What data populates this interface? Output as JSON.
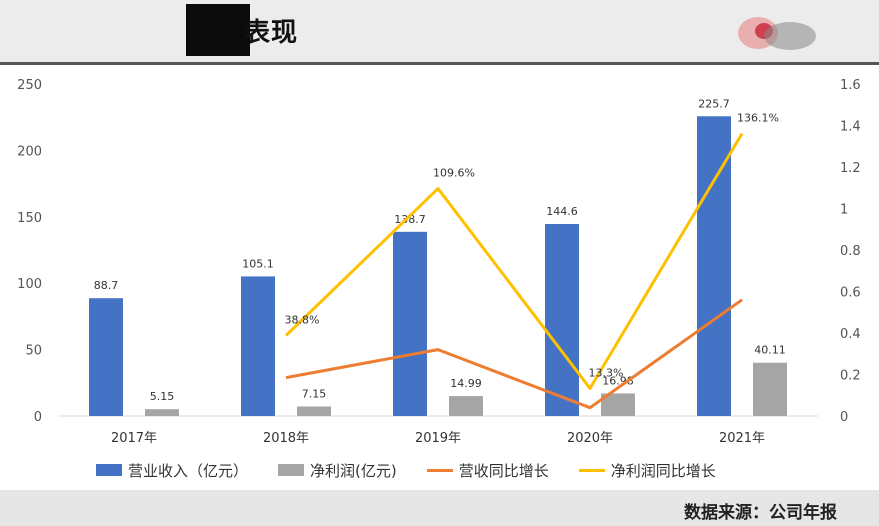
{
  "header": {
    "title": "表现"
  },
  "footer": {
    "source": "数据来源：公司年报"
  },
  "colors": {
    "revenue": "#4472c4",
    "profit": "#a5a5a5",
    "revenue_growth": "#ed7d31",
    "profit_growth": "#ffc000"
  },
  "chart_data": {
    "type": "bar",
    "categories": [
      "2017年",
      "2018年",
      "2019年",
      "2020年",
      "2021年"
    ],
    "ylim": [
      0,
      250
    ],
    "y2lim": [
      0,
      1.6
    ],
    "yticks": [
      "0",
      "50",
      "100",
      "150",
      "200",
      "250"
    ],
    "y2ticks": [
      "0",
      "0.2",
      "0.4",
      "0.6",
      "0.8",
      "1",
      "1.2",
      "1.4",
      "1.6"
    ],
    "series": [
      {
        "name": "营业收入（亿元）",
        "type": "bar",
        "axis": "left",
        "values": [
          88.7,
          105.1,
          138.7,
          144.6,
          225.7
        ],
        "labels": [
          "88.7",
          "105.1",
          "138.7",
          "144.6",
          "225.7"
        ]
      },
      {
        "name": "净利润(亿元)",
        "type": "bar",
        "axis": "left",
        "values": [
          5.15,
          7.15,
          14.99,
          16.98,
          40.11
        ],
        "labels": [
          "5.15",
          "7.15",
          "14.99",
          "16.98",
          "40.11"
        ]
      },
      {
        "name": "营收同比增长",
        "type": "line",
        "axis": "right",
        "values": [
          null,
          0.185,
          0.32,
          0.04,
          0.56
        ],
        "labels": []
      },
      {
        "name": "净利润同比增长",
        "type": "line",
        "axis": "right",
        "values": [
          null,
          0.388,
          1.096,
          0.133,
          1.361
        ],
        "labels": [
          "",
          "38.8%",
          "109.6%",
          "13.3%",
          "136.1%"
        ]
      }
    ],
    "legend_position": "bottom",
    "grid": true
  }
}
